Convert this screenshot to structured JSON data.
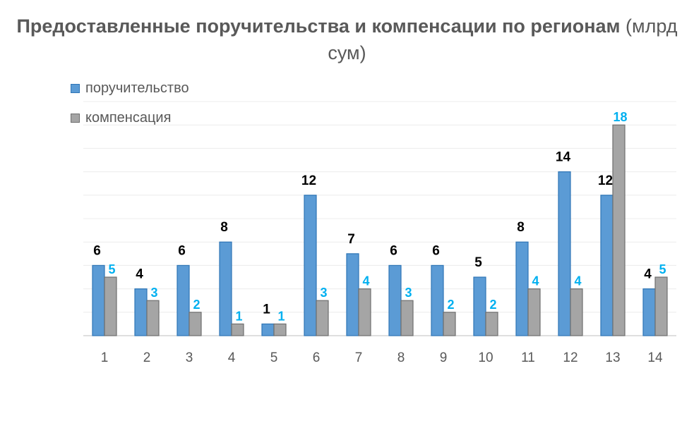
{
  "chart_data": {
    "type": "bar",
    "title_bold": "Предоставленные поручительства и компенсации по регионам",
    "title_unit": "(млрд сум)",
    "categories": [
      "1",
      "2",
      "3",
      "4",
      "5",
      "6",
      "7",
      "8",
      "9",
      "10",
      "11",
      "12",
      "13",
      "14"
    ],
    "series": [
      {
        "name": "поручительство",
        "values": [
          6,
          4,
          6,
          8,
          1,
          12,
          7,
          6,
          6,
          5,
          8,
          14,
          12,
          4
        ]
      },
      {
        "name": "компенсация",
        "values": [
          5,
          3,
          2,
          1,
          1,
          3,
          4,
          3,
          2,
          2,
          4,
          4,
          18,
          5
        ]
      }
    ],
    "ylim": [
      0,
      20
    ],
    "grid": true,
    "legend_position": "top-left"
  },
  "colors": {
    "guarantee_fill": "#5b9bd5",
    "guarantee_stroke": "#2e75b6",
    "compensation_fill": "#a5a5a5",
    "compensation_stroke": "#6f6f6f",
    "guarantee_label": "#000000",
    "compensation_label": "#00b0f0",
    "grid": "#ececec",
    "axis": "#bfbfbf",
    "tick_label": "#595959"
  }
}
